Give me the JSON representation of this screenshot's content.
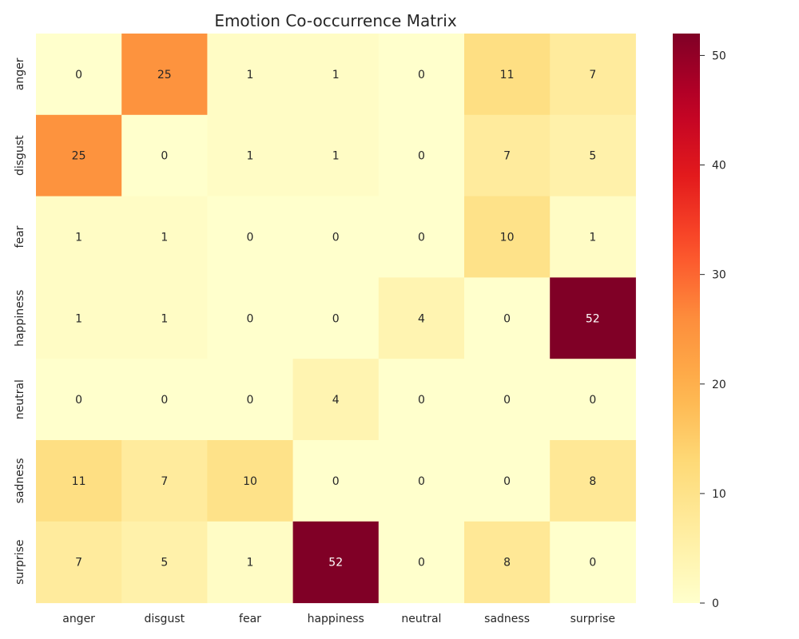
{
  "chart_data": {
    "type": "heatmap",
    "title": "Emotion Co-occurrence Matrix",
    "xlabel": "",
    "ylabel": "",
    "x_categories": [
      "anger",
      "disgust",
      "fear",
      "happiness",
      "neutral",
      "sadness",
      "surprise"
    ],
    "y_categories": [
      "anger",
      "disgust",
      "fear",
      "happiness",
      "neutral",
      "sadness",
      "surprise"
    ],
    "values": [
      [
        0,
        25,
        1,
        1,
        0,
        11,
        7
      ],
      [
        25,
        0,
        1,
        1,
        0,
        7,
        5
      ],
      [
        1,
        1,
        0,
        0,
        0,
        10,
        1
      ],
      [
        1,
        1,
        0,
        0,
        4,
        0,
        52
      ],
      [
        0,
        0,
        0,
        4,
        0,
        0,
        0
      ],
      [
        11,
        7,
        10,
        0,
        0,
        0,
        8
      ],
      [
        7,
        5,
        1,
        52,
        0,
        8,
        0
      ]
    ],
    "colormap": "YlOrRd",
    "color_range": [
      0,
      52
    ],
    "colorbar_ticks": [
      0,
      10,
      20,
      30,
      40,
      50
    ],
    "annotations_shown": true,
    "grid": false,
    "colors": {
      "low": "#ffffcc",
      "high": "#800026",
      "text_dark": "#262626",
      "text_light": "#ffffff"
    }
  }
}
